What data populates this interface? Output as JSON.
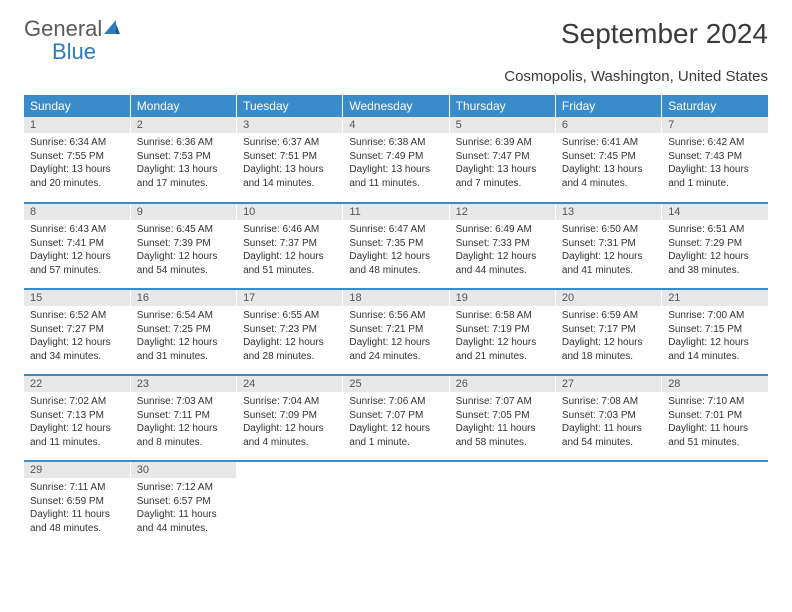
{
  "logo": {
    "word1": "General",
    "word2": "Blue"
  },
  "title": "September 2024",
  "subtitle": "Cosmopolis, Washington, United States",
  "colors": {
    "header_bg": "#3a8bc9",
    "header_text": "#ffffff",
    "daynum_bg": "#e8e8e8",
    "border": "#3a8bc9",
    "logo_gray": "#5a5a5a",
    "logo_blue": "#2f7bbf"
  },
  "weekdays": [
    "Sunday",
    "Monday",
    "Tuesday",
    "Wednesday",
    "Thursday",
    "Friday",
    "Saturday"
  ],
  "weeks": [
    [
      {
        "n": "1",
        "sr": "6:34 AM",
        "ss": "7:55 PM",
        "dh": "13",
        "dm": "20"
      },
      {
        "n": "2",
        "sr": "6:36 AM",
        "ss": "7:53 PM",
        "dh": "13",
        "dm": "17"
      },
      {
        "n": "3",
        "sr": "6:37 AM",
        "ss": "7:51 PM",
        "dh": "13",
        "dm": "14"
      },
      {
        "n": "4",
        "sr": "6:38 AM",
        "ss": "7:49 PM",
        "dh": "13",
        "dm": "11"
      },
      {
        "n": "5",
        "sr": "6:39 AM",
        "ss": "7:47 PM",
        "dh": "13",
        "dm": "7"
      },
      {
        "n": "6",
        "sr": "6:41 AM",
        "ss": "7:45 PM",
        "dh": "13",
        "dm": "4"
      },
      {
        "n": "7",
        "sr": "6:42 AM",
        "ss": "7:43 PM",
        "dh": "13",
        "dm": "1"
      }
    ],
    [
      {
        "n": "8",
        "sr": "6:43 AM",
        "ss": "7:41 PM",
        "dh": "12",
        "dm": "57"
      },
      {
        "n": "9",
        "sr": "6:45 AM",
        "ss": "7:39 PM",
        "dh": "12",
        "dm": "54"
      },
      {
        "n": "10",
        "sr": "6:46 AM",
        "ss": "7:37 PM",
        "dh": "12",
        "dm": "51"
      },
      {
        "n": "11",
        "sr": "6:47 AM",
        "ss": "7:35 PM",
        "dh": "12",
        "dm": "48"
      },
      {
        "n": "12",
        "sr": "6:49 AM",
        "ss": "7:33 PM",
        "dh": "12",
        "dm": "44"
      },
      {
        "n": "13",
        "sr": "6:50 AM",
        "ss": "7:31 PM",
        "dh": "12",
        "dm": "41"
      },
      {
        "n": "14",
        "sr": "6:51 AM",
        "ss": "7:29 PM",
        "dh": "12",
        "dm": "38"
      }
    ],
    [
      {
        "n": "15",
        "sr": "6:52 AM",
        "ss": "7:27 PM",
        "dh": "12",
        "dm": "34"
      },
      {
        "n": "16",
        "sr": "6:54 AM",
        "ss": "7:25 PM",
        "dh": "12",
        "dm": "31"
      },
      {
        "n": "17",
        "sr": "6:55 AM",
        "ss": "7:23 PM",
        "dh": "12",
        "dm": "28"
      },
      {
        "n": "18",
        "sr": "6:56 AM",
        "ss": "7:21 PM",
        "dh": "12",
        "dm": "24"
      },
      {
        "n": "19",
        "sr": "6:58 AM",
        "ss": "7:19 PM",
        "dh": "12",
        "dm": "21"
      },
      {
        "n": "20",
        "sr": "6:59 AM",
        "ss": "7:17 PM",
        "dh": "12",
        "dm": "18"
      },
      {
        "n": "21",
        "sr": "7:00 AM",
        "ss": "7:15 PM",
        "dh": "12",
        "dm": "14"
      }
    ],
    [
      {
        "n": "22",
        "sr": "7:02 AM",
        "ss": "7:13 PM",
        "dh": "12",
        "dm": "11"
      },
      {
        "n": "23",
        "sr": "7:03 AM",
        "ss": "7:11 PM",
        "dh": "12",
        "dm": "8"
      },
      {
        "n": "24",
        "sr": "7:04 AM",
        "ss": "7:09 PM",
        "dh": "12",
        "dm": "4"
      },
      {
        "n": "25",
        "sr": "7:06 AM",
        "ss": "7:07 PM",
        "dh": "12",
        "dm": "1"
      },
      {
        "n": "26",
        "sr": "7:07 AM",
        "ss": "7:05 PM",
        "dh": "11",
        "dm": "58"
      },
      {
        "n": "27",
        "sr": "7:08 AM",
        "ss": "7:03 PM",
        "dh": "11",
        "dm": "54"
      },
      {
        "n": "28",
        "sr": "7:10 AM",
        "ss": "7:01 PM",
        "dh": "11",
        "dm": "51"
      }
    ],
    [
      {
        "n": "29",
        "sr": "7:11 AM",
        "ss": "6:59 PM",
        "dh": "11",
        "dm": "48"
      },
      {
        "n": "30",
        "sr": "7:12 AM",
        "ss": "6:57 PM",
        "dh": "11",
        "dm": "44"
      },
      null,
      null,
      null,
      null,
      null
    ]
  ],
  "labels": {
    "sunrise": "Sunrise:",
    "sunset": "Sunset:",
    "daylight": "Daylight:",
    "hours": "hours",
    "and": "and",
    "minutes": "minutes.",
    "minute": "minute."
  }
}
